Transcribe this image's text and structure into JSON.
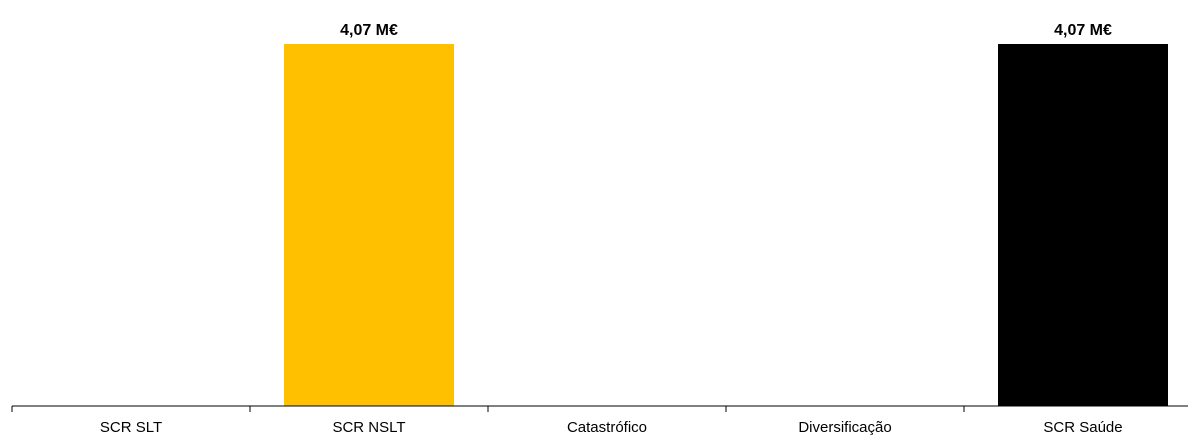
{
  "chart_data": {
    "type": "bar",
    "categories": [
      "SCR SLT",
      "SCR NSLT",
      "Catastrófico",
      "Diversificação",
      "SCR Saúde"
    ],
    "values": [
      0,
      4.07,
      0,
      0,
      4.07
    ],
    "data_labels": [
      "",
      "4,07 M€",
      "",
      "",
      "4,07 M€"
    ],
    "colors": [
      "#FFC000",
      "#FFC000",
      "#FFC000",
      "#FFC000",
      "#000000"
    ],
    "ylim": [
      0,
      4.07
    ],
    "title": "",
    "xlabel": "",
    "ylabel": "",
    "grid": false,
    "legend": "none"
  }
}
